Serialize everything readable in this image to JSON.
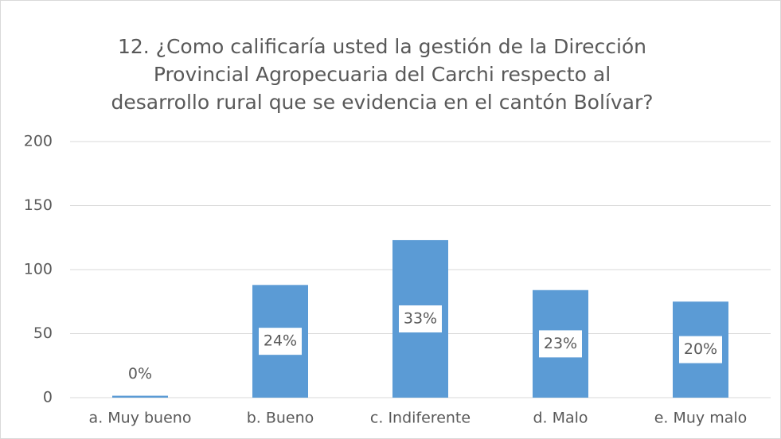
{
  "chart_data": {
    "type": "bar",
    "title": [
      "12. ¿Como calificaría usted la gestión de la Dirección",
      "Provincial Agropecuaria del Carchi respecto al",
      "desarrollo rural que se evidencia en el cantón Bolívar?"
    ],
    "categories": [
      "a. Muy bueno",
      "b. Bueno",
      "c. Indiferente",
      "d. Malo",
      "e. Muy malo"
    ],
    "values": [
      1.5,
      88,
      123,
      84,
      75
    ],
    "value_labels": [
      "0%",
      "24%",
      "33%",
      "23%",
      "20%"
    ],
    "color": "#5b9bd5",
    "ylim": [
      0,
      200
    ],
    "yticks": [
      0,
      50,
      100,
      150,
      200
    ],
    "grid": true
  }
}
